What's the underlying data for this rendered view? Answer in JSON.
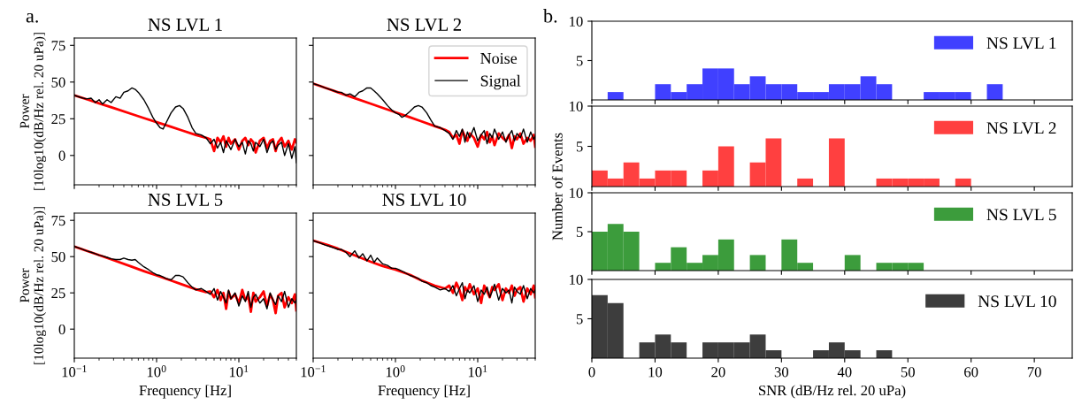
{
  "chart_data": [
    {
      "type": "line",
      "title": "NS LVL 1",
      "ylabel": "Power\n[10log10(dB/Hz rel. 20 uPa)]",
      "annotations": [
        "a."
      ],
      "log": "x",
      "xlim": [
        0.1,
        50
      ],
      "ylim": [
        -20,
        80
      ],
      "yticks": [
        0,
        25,
        50,
        75
      ],
      "tick_labels": "y",
      "series": [
        {
          "color": "#ff0000",
          "x": [
            0.1,
            0.15,
            0.2,
            0.3,
            0.5,
            0.7,
            1,
            1.5,
            2,
            3,
            4,
            4.5,
            5,
            5.5,
            6,
            6.5,
            7,
            7.5,
            8,
            9,
            10,
            11,
            12,
            13,
            14,
            15,
            16,
            18,
            20,
            22,
            24,
            26,
            28,
            30,
            33,
            36,
            40,
            44,
            48,
            50
          ],
          "values": [
            41,
            37.8,
            35.5,
            32.3,
            28.2,
            25.5,
            22.7,
            19.5,
            17.2,
            14,
            12,
            11,
            3,
            12,
            9,
            13,
            6,
            12,
            8,
            11,
            4,
            10,
            12,
            7,
            11,
            9,
            2,
            10,
            12,
            5,
            10,
            11,
            3,
            9,
            12,
            6,
            10,
            4,
            11,
            9
          ]
        },
        {
          "color": "#000000",
          "x": [
            0.1,
            0.12,
            0.14,
            0.16,
            0.18,
            0.2,
            0.22,
            0.25,
            0.28,
            0.32,
            0.36,
            0.4,
            0.45,
            0.5,
            0.55,
            0.6,
            0.7,
            0.8,
            0.9,
            1,
            1.1,
            1.2,
            1.3,
            1.5,
            1.7,
            1.9,
            2.1,
            2.4,
            2.7,
            3,
            3.5,
            4,
            4.5,
            5,
            5.5,
            6,
            6.5,
            7,
            7.5,
            8,
            9,
            10,
            11,
            12,
            13,
            14,
            15,
            16,
            18,
            20,
            22,
            24,
            26,
            28,
            30,
            33,
            36,
            40,
            44,
            48,
            50
          ],
          "values": [
            41,
            39.5,
            38.5,
            39,
            36,
            38,
            35,
            38,
            36,
            40,
            39,
            43,
            44,
            46,
            45,
            43,
            38,
            32,
            26,
            22,
            19,
            18,
            22,
            29,
            33,
            34,
            32,
            26,
            19,
            15,
            14,
            12,
            8,
            11,
            5,
            9,
            2,
            10,
            7,
            4,
            11,
            6,
            9,
            1,
            10,
            8,
            3,
            9,
            6,
            11,
            2,
            8,
            10,
            4,
            7,
            9,
            0,
            8,
            -2,
            6,
            -5
          ]
        }
      ]
    },
    {
      "type": "line",
      "title": "NS LVL 2",
      "log": "x",
      "xlim": [
        0.1,
        50
      ],
      "ylim": [
        -20,
        80
      ],
      "yticks": [
        0,
        25,
        50,
        75
      ],
      "tick_labels": false,
      "legend": "top right",
      "series": [
        {
          "name": "Noise",
          "color": "#ff0000",
          "x": [
            0.1,
            0.15,
            0.2,
            0.3,
            0.5,
            0.7,
            1,
            1.5,
            2,
            3,
            4,
            4.5,
            5,
            5.5,
            6,
            6.5,
            7,
            7.5,
            8,
            9,
            10,
            11,
            12,
            13,
            14,
            15,
            16,
            18,
            20,
            22,
            24,
            26,
            28,
            30,
            33,
            36,
            40,
            44,
            48,
            50
          ],
          "values": [
            49,
            45.5,
            43,
            39.6,
            35.3,
            32.4,
            29.4,
            26,
            23.5,
            20,
            17.5,
            16,
            12,
            14,
            8,
            17,
            13,
            10,
            15,
            12,
            6,
            14,
            11,
            16,
            9,
            13,
            7,
            15,
            12,
            10,
            14,
            5,
            13,
            11,
            15,
            8,
            12,
            10,
            14,
            6
          ]
        },
        {
          "name": "Signal",
          "color": "#000000",
          "x": [
            0.1,
            0.12,
            0.14,
            0.16,
            0.18,
            0.2,
            0.22,
            0.25,
            0.28,
            0.32,
            0.36,
            0.4,
            0.45,
            0.5,
            0.55,
            0.6,
            0.7,
            0.8,
            0.9,
            1,
            1.1,
            1.2,
            1.3,
            1.5,
            1.7,
            1.9,
            2.1,
            2.4,
            2.7,
            3,
            3.5,
            4,
            4.5,
            5,
            5.5,
            6,
            6.5,
            7,
            7.5,
            8,
            9,
            10,
            11,
            12,
            13,
            14,
            15,
            16,
            18,
            20,
            22,
            24,
            26,
            28,
            30,
            33,
            36,
            40,
            44,
            48,
            50
          ],
          "values": [
            49,
            47.5,
            46,
            45,
            44,
            43,
            43,
            41,
            42,
            40,
            43,
            44,
            46,
            46,
            44,
            42,
            38,
            34,
            31,
            29,
            28,
            26,
            27,
            30,
            33,
            34,
            33,
            29,
            24,
            20,
            19,
            17,
            15,
            11,
            17,
            13,
            18,
            9,
            16,
            12,
            19,
            10,
            14,
            17,
            8,
            15,
            12,
            18,
            11,
            16,
            9,
            14,
            17,
            10,
            15,
            12,
            18,
            9,
            16,
            11,
            13
          ]
        }
      ]
    },
    {
      "type": "line",
      "title": "NS LVL 5",
      "ylabel": "Power\n[10log10(dB/Hz rel. 20 uPa)]",
      "xlabel": "Frequency [Hz]",
      "log": "x",
      "xlim": [
        0.1,
        50
      ],
      "ylim": [
        -20,
        80
      ],
      "xticks": [
        {
          "value": 0.1,
          "label": "10$^{−1}$"
        },
        {
          "value": 1,
          "label": "10$^{0}$"
        },
        {
          "value": 10,
          "label": "10$^{1}$"
        }
      ],
      "yticks": [
        0,
        25,
        50,
        75
      ],
      "series": [
        {
          "color": "#ff0000",
          "x": [
            0.1,
            0.15,
            0.2,
            0.3,
            0.5,
            0.7,
            1,
            1.5,
            2,
            3,
            4,
            4.5,
            5,
            5.5,
            6,
            6.5,
            7,
            7.5,
            8,
            9,
            10,
            11,
            12,
            13,
            14,
            15,
            16,
            18,
            20,
            22,
            24,
            26,
            28,
            30,
            33,
            36,
            40,
            44,
            48,
            50
          ],
          "values": [
            57,
            53.5,
            51,
            47.5,
            43,
            40,
            37,
            33.5,
            31,
            27.5,
            25.5,
            26,
            22,
            27,
            20,
            25,
            14,
            26,
            21,
            24,
            18,
            27,
            20,
            23,
            12,
            25,
            19,
            22,
            26,
            16,
            24,
            20,
            11,
            23,
            25,
            15,
            22,
            18,
            24,
            13
          ]
        },
        {
          "color": "#000000",
          "x": [
            0.1,
            0.12,
            0.14,
            0.16,
            0.18,
            0.2,
            0.22,
            0.25,
            0.28,
            0.32,
            0.36,
            0.4,
            0.45,
            0.5,
            0.55,
            0.6,
            0.7,
            0.8,
            0.9,
            1,
            1.1,
            1.2,
            1.3,
            1.5,
            1.7,
            1.9,
            2.1,
            2.4,
            2.7,
            3,
            3.5,
            4,
            4.5,
            5,
            5.5,
            6,
            6.5,
            7,
            7.5,
            8,
            9,
            10,
            11,
            12,
            13,
            14,
            15,
            16,
            18,
            20,
            22,
            24,
            26,
            28,
            30,
            33,
            36,
            40,
            44,
            48,
            50
          ],
          "values": [
            57,
            55.5,
            54,
            53,
            52,
            51,
            50.5,
            49.5,
            48.5,
            48,
            48,
            49,
            48,
            47.5,
            48,
            46,
            43,
            41,
            39,
            37.5,
            37,
            36,
            35,
            34,
            37,
            37,
            36,
            32,
            29,
            27,
            28,
            26,
            24,
            28,
            20,
            26,
            22,
            18,
            27,
            21,
            25,
            16,
            23,
            19,
            26,
            15,
            22,
            24,
            18,
            21,
            14,
            25,
            20,
            17,
            23,
            19,
            26,
            15,
            21,
            18,
            20
          ]
        }
      ]
    },
    {
      "type": "line",
      "title": "NS LVL 10",
      "xlabel": "Frequency [Hz]",
      "log": "x",
      "xlim": [
        0.1,
        50
      ],
      "ylim": [
        -20,
        80
      ],
      "xticks": [
        {
          "value": 0.1,
          "label": "10$^{−1}$"
        },
        {
          "value": 1,
          "label": "10$^{0}$"
        },
        {
          "value": 10,
          "label": "10$^{1}$"
        }
      ],
      "yticks": [
        0,
        25,
        50,
        75
      ],
      "tick_labels": "x",
      "series": [
        {
          "color": "#ff0000",
          "x": [
            0.1,
            0.15,
            0.2,
            0.3,
            0.5,
            0.7,
            1,
            1.5,
            2,
            3,
            4,
            4.5,
            5,
            5.5,
            6,
            6.5,
            7,
            7.5,
            8,
            9,
            10,
            11,
            12,
            13,
            14,
            15,
            16,
            18,
            20,
            22,
            24,
            26,
            28,
            30,
            33,
            36,
            40,
            44,
            48,
            50
          ],
          "values": [
            61,
            58,
            55.5,
            51.5,
            46.5,
            43.5,
            41,
            37.5,
            34,
            30,
            28,
            30,
            25,
            32,
            27,
            20,
            29,
            26,
            31,
            24,
            28,
            18,
            30,
            26,
            22,
            29,
            27,
            31,
            20,
            28,
            25,
            30,
            23,
            27,
            29,
            19,
            28,
            24,
            30,
            22
          ]
        },
        {
          "color": "#000000",
          "x": [
            0.1,
            0.12,
            0.14,
            0.16,
            0.18,
            0.2,
            0.22,
            0.25,
            0.28,
            0.32,
            0.36,
            0.4,
            0.45,
            0.5,
            0.55,
            0.6,
            0.7,
            0.8,
            0.9,
            1,
            1.1,
            1.2,
            1.3,
            1.5,
            1.7,
            1.9,
            2.1,
            2.4,
            2.7,
            3,
            3.5,
            4,
            4.5,
            5,
            5.5,
            6,
            6.5,
            7,
            7.5,
            8,
            9,
            10,
            11,
            12,
            13,
            14,
            15,
            16,
            18,
            20,
            22,
            24,
            26,
            28,
            30,
            33,
            36,
            40,
            44,
            48,
            50
          ],
          "values": [
            61,
            59.5,
            58,
            57,
            56,
            55,
            55,
            53,
            50,
            54,
            49,
            52,
            47,
            51,
            46,
            49,
            45,
            44,
            42,
            42,
            41,
            40,
            39,
            37,
            36,
            35,
            33,
            32,
            30,
            29,
            27,
            28,
            26,
            30,
            23,
            28,
            32,
            21,
            27,
            25,
            30,
            19,
            27,
            24,
            29,
            22,
            26,
            31,
            20,
            28,
            25,
            27,
            18,
            29,
            26,
            24,
            30,
            21,
            28,
            25,
            27
          ]
        }
      ]
    },
    {
      "type": "histogram",
      "annotations": [
        "b."
      ],
      "bins": [
        0,
        2.5,
        5,
        7.5,
        10,
        12.5,
        15,
        17.5,
        20,
        22.5,
        25,
        27.5,
        30,
        32.5,
        35,
        37.5,
        40,
        42.5,
        45,
        47.5,
        50,
        52.5,
        55,
        57.5,
        60,
        62.5,
        65,
        67.5,
        70,
        72.5,
        75
      ],
      "xlim": [
        0,
        76
      ],
      "ylim": [
        0,
        10
      ],
      "xticks": [
        0,
        10,
        20,
        30,
        40,
        50,
        60,
        70
      ],
      "yticks": [
        5,
        10
      ],
      "tick_labels": "y",
      "legend": "top right",
      "series": [
        {
          "name": "NS LVL 1",
          "color": "#4040ff",
          "values": [
            0,
            1,
            0,
            0,
            2,
            1,
            2,
            4,
            4,
            2,
            3,
            2,
            2,
            1,
            1,
            2,
            2,
            3,
            2,
            0,
            0,
            1,
            1,
            1,
            0,
            2,
            0,
            0,
            0,
            0
          ]
        }
      ]
    },
    {
      "type": "histogram",
      "ylabel": "Number of Events",
      "bins": [
        0,
        2.5,
        5,
        7.5,
        10,
        12.5,
        15,
        17.5,
        20,
        22.5,
        25,
        27.5,
        30,
        32.5,
        35,
        37.5,
        40,
        42.5,
        45,
        47.5,
        50,
        52.5,
        55,
        57.5,
        60,
        62.5,
        65,
        67.5,
        70,
        72.5,
        75
      ],
      "xlim": [
        0,
        76
      ],
      "ylim": [
        0,
        10
      ],
      "xticks": [
        0,
        10,
        20,
        30,
        40,
        50,
        60,
        70
      ],
      "yticks": [
        5,
        10
      ],
      "tick_labels": "y",
      "legend": "top right",
      "series": [
        {
          "name": "NS LVL 2",
          "color": "#ff4040",
          "values": [
            2,
            1,
            3,
            1,
            2,
            2,
            0,
            2,
            5,
            0,
            3,
            6,
            0,
            1,
            0,
            6,
            0,
            0,
            1,
            1,
            1,
            1,
            0,
            1,
            0,
            0,
            0,
            0,
            0,
            0
          ]
        }
      ]
    },
    {
      "type": "histogram",
      "bins": [
        0,
        2.5,
        5,
        7.5,
        10,
        12.5,
        15,
        17.5,
        20,
        22.5,
        25,
        27.5,
        30,
        32.5,
        35,
        37.5,
        40,
        42.5,
        45,
        47.5,
        50,
        52.5,
        55,
        57.5,
        60,
        62.5,
        65,
        67.5,
        70,
        72.5,
        75
      ],
      "xlim": [
        0,
        76
      ],
      "ylim": [
        0,
        10
      ],
      "xticks": [
        0,
        10,
        20,
        30,
        40,
        50,
        60,
        70
      ],
      "yticks": [
        5,
        10
      ],
      "tick_labels": "y",
      "legend": "top right",
      "series": [
        {
          "name": "NS LVL 5",
          "color": "#3c9c3c",
          "values": [
            5,
            6,
            5,
            0,
            1,
            3,
            1,
            2,
            4,
            0,
            2,
            0,
            4,
            1,
            0,
            0,
            2,
            0,
            1,
            1,
            1,
            0,
            0,
            0,
            0,
            0,
            0,
            0,
            0,
            0
          ]
        }
      ]
    },
    {
      "type": "histogram",
      "xlabel": "SNR (dB/Hz rel. 20 uPa)",
      "bins": [
        0,
        2.5,
        5,
        7.5,
        10,
        12.5,
        15,
        17.5,
        20,
        22.5,
        25,
        27.5,
        30,
        32.5,
        35,
        37.5,
        40,
        42.5,
        45,
        47.5,
        50,
        52.5,
        55,
        57.5,
        60,
        62.5,
        65,
        67.5,
        70,
        72.5,
        75
      ],
      "xlim": [
        0,
        76
      ],
      "ylim": [
        0,
        10
      ],
      "xticks": [
        0,
        10,
        20,
        30,
        40,
        50,
        60,
        70
      ],
      "yticks": [
        5,
        10
      ],
      "legend": "top right",
      "series": [
        {
          "name": "NS LVL 10",
          "color": "#3d3d3d",
          "values": [
            8,
            7,
            0,
            2,
            3,
            2,
            0,
            2,
            2,
            2,
            3,
            1,
            0,
            0,
            1,
            2,
            1,
            0,
            1,
            0,
            0,
            0,
            0,
            0,
            0,
            0,
            0,
            0,
            0,
            0
          ]
        }
      ]
    }
  ]
}
